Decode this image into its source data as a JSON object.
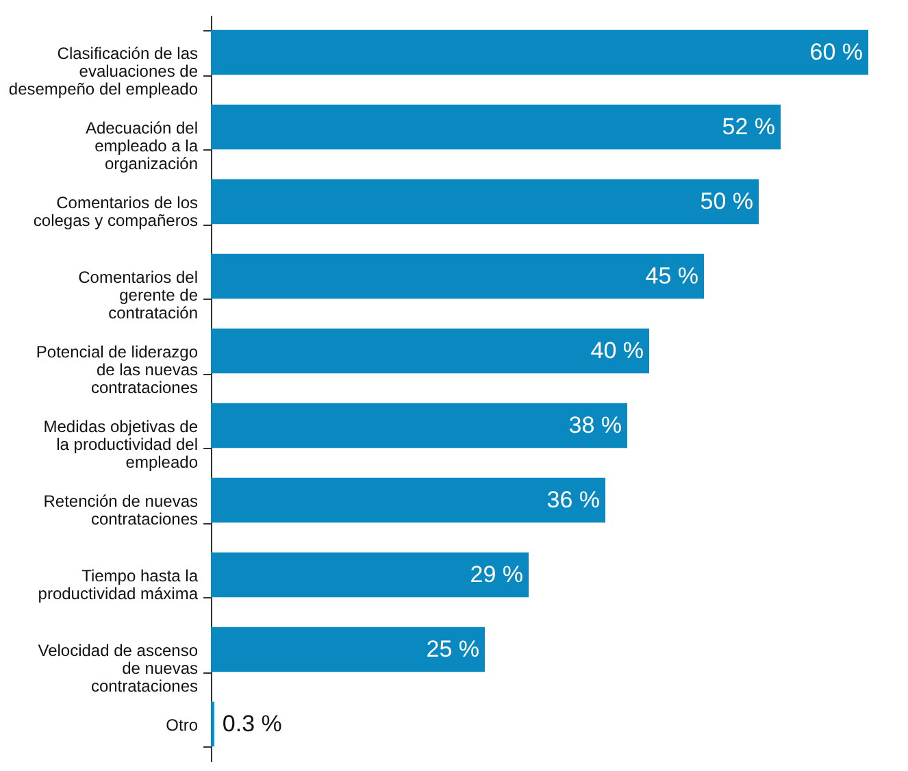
{
  "chart_data": {
    "type": "bar",
    "orientation": "horizontal",
    "categories": [
      "Clasificación de las evaluaciones de desempeño del empleado",
      "Adecuación del empleado a la organización",
      "Comentarios de los colegas y compañeros",
      "Comentarios del gerente de contratación",
      "Potencial de liderazgo de las nuevas contrataciones",
      "Medidas objetivas de la productividad del empleado",
      "Retención de nuevas contrataciones",
      "Tiempo hasta la productividad máxima",
      "Velocidad de ascenso de nuevas contrataciones",
      "Otro"
    ],
    "values": [
      60,
      52,
      50,
      45,
      40,
      38,
      36,
      29,
      25,
      0.3
    ],
    "value_labels": [
      "60 %",
      "52 %",
      "50 %",
      "45 %",
      "40 %",
      "38 %",
      "36 %",
      "29 %",
      "25 %",
      "0.3 %"
    ],
    "color": "#0a88c0"
  }
}
